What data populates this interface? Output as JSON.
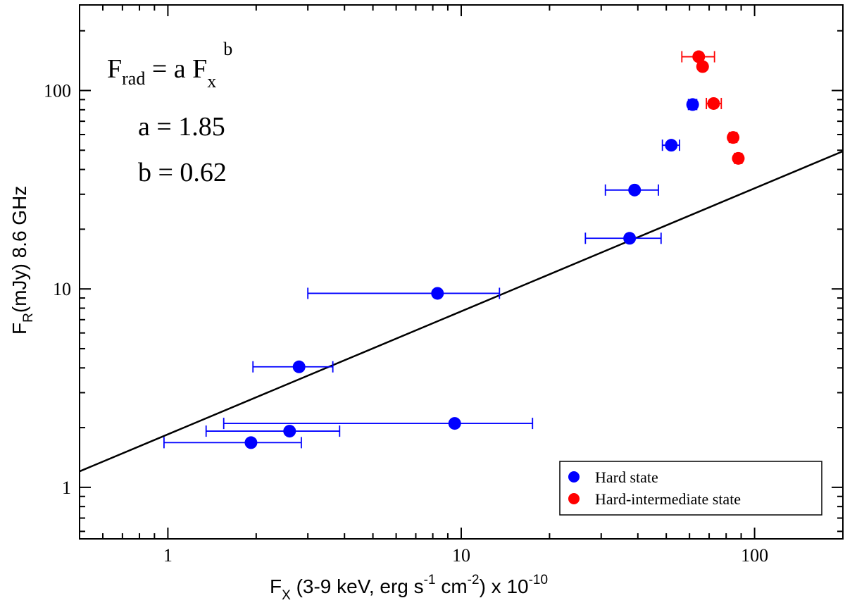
{
  "chart_data": {
    "type": "scatter",
    "x_scale": "log",
    "y_scale": "log",
    "xlim": [
      0.5,
      200
    ],
    "ylim": [
      0.55,
      270
    ],
    "x_ticks": [
      1,
      10,
      100
    ],
    "y_ticks": [
      1,
      10,
      100
    ],
    "x_tick_labels": [
      "1",
      "10",
      "100"
    ],
    "y_tick_labels": [
      "1",
      "10",
      "100"
    ],
    "xlabel": {
      "main": "F",
      "sub": "X",
      "text1": " (3-9 keV, erg s",
      "sup1": "-1",
      "text2": " cm",
      "sup2": "-2",
      "text3": ") x 10",
      "sup3": "-10"
    },
    "ylabel": {
      "main": "F",
      "sub": "R",
      "rest": "(mJy) 8.6 GHz"
    },
    "fit": {
      "label_main": "F",
      "label_sub1": "rad",
      "label_mid": " = a F",
      "label_sub2": "x",
      "label_sup": "b",
      "a_text": "a = 1.85",
      "b_text": "b = 0.62",
      "a": 1.85,
      "b": 0.62,
      "color": "#000000"
    },
    "series": [
      {
        "name": "Hard state",
        "color": "#0000ff",
        "points": [
          {
            "x": 1.92,
            "y": 1.68,
            "xerr_low": 0.97,
            "xerr_high": 2.85
          },
          {
            "x": 2.6,
            "y": 1.92,
            "xerr_low": 1.35,
            "xerr_high": 3.85
          },
          {
            "x": 9.5,
            "y": 2.1,
            "xerr_low": 1.55,
            "xerr_high": 17.5
          },
          {
            "x": 2.8,
            "y": 4.05,
            "xerr_low": 1.95,
            "xerr_high": 3.65
          },
          {
            "x": 8.3,
            "y": 9.5,
            "xerr_low": 3.0,
            "xerr_high": 13.5
          },
          {
            "x": 37.5,
            "y": 18.0,
            "xerr_low": 26.5,
            "xerr_high": 48.0
          },
          {
            "x": 39.0,
            "y": 31.5,
            "xerr_low": 31.0,
            "xerr_high": 47.0
          },
          {
            "x": 52.0,
            "y": 53.0,
            "xerr_low": 48.5,
            "xerr_high": 55.5
          },
          {
            "x": 61.5,
            "y": 85.0,
            "xerr_low": 59.5,
            "xerr_high": 63.5
          }
        ]
      },
      {
        "name": "Hard-intermediate state",
        "color": "#ff0000",
        "points": [
          {
            "x": 64.5,
            "y": 148.0,
            "xerr_low": 56.5,
            "xerr_high": 73.0
          },
          {
            "x": 66.5,
            "y": 132.0,
            "xerr_low": 65.5,
            "xerr_high": 67.5
          },
          {
            "x": 72.5,
            "y": 86.0,
            "xerr_low": 68.5,
            "xerr_high": 77.0
          },
          {
            "x": 84.5,
            "y": 58.0,
            "xerr_low": 82.0,
            "xerr_high": 87.0
          },
          {
            "x": 88.0,
            "y": 45.5,
            "xerr_low": 85.5,
            "xerr_high": 90.5
          }
        ]
      }
    ],
    "legend": {
      "location": "bottom-right",
      "entries": [
        "Hard state",
        "Hard-intermediate state"
      ]
    }
  }
}
